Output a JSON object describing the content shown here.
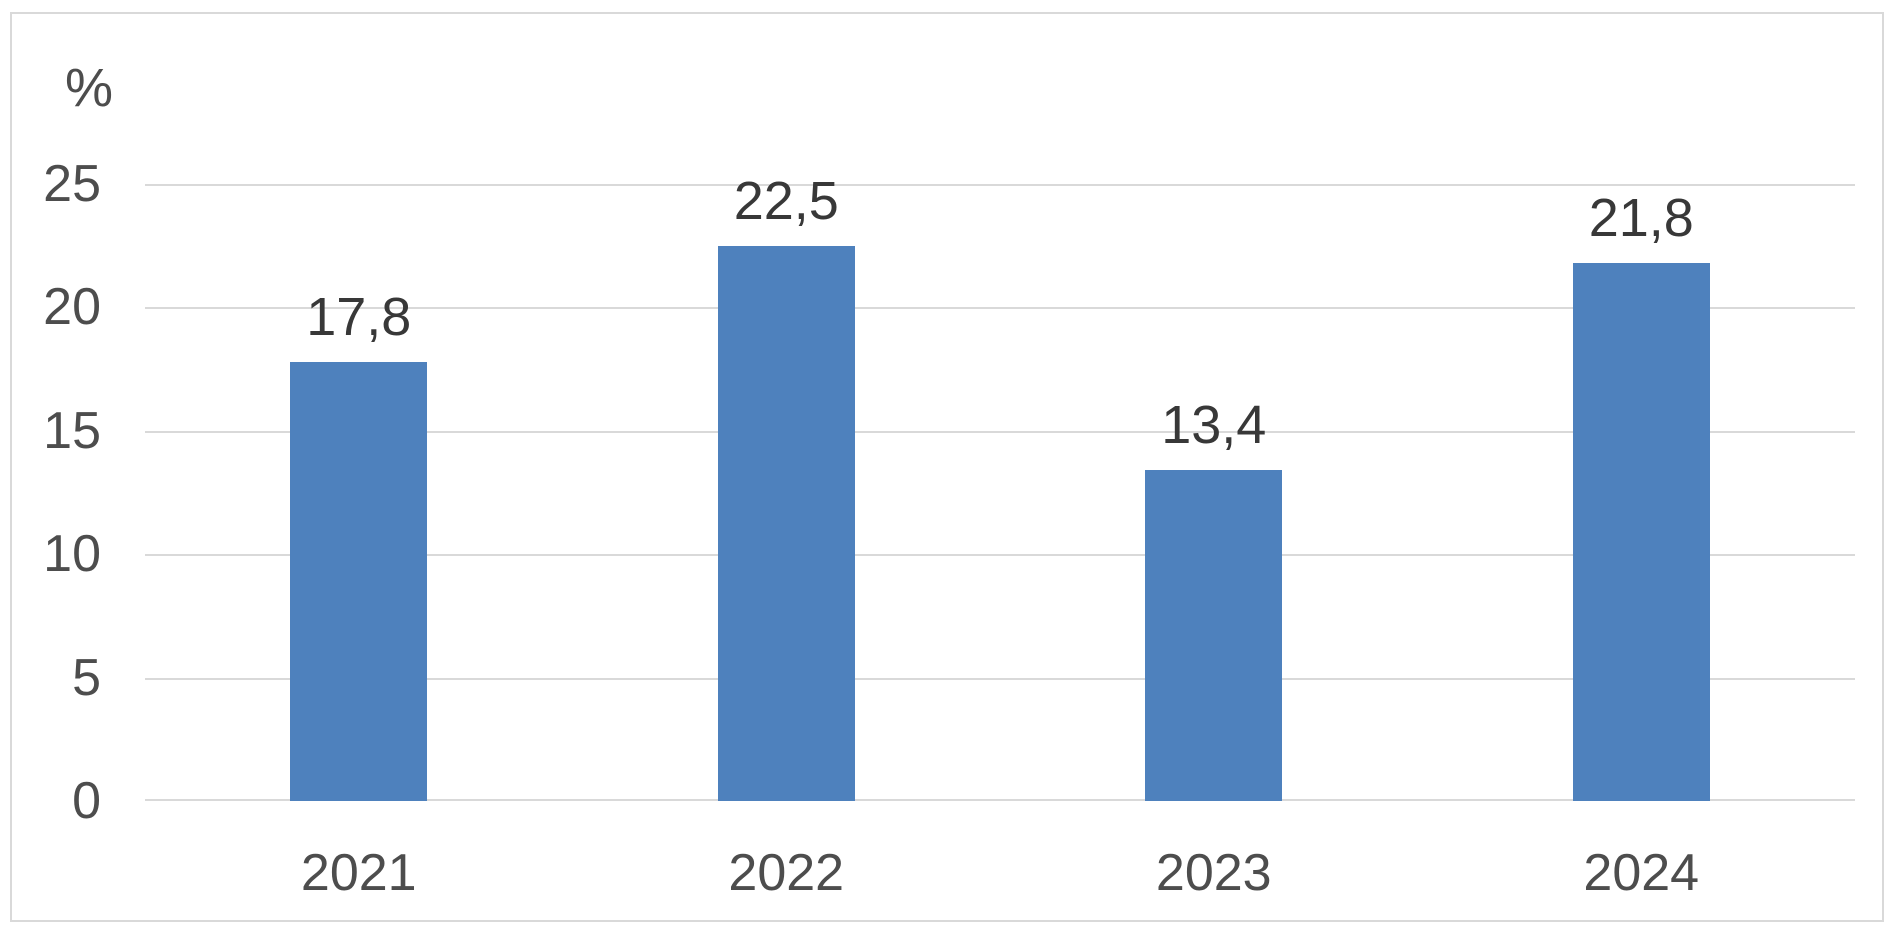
{
  "chart_data": {
    "type": "bar",
    "title": "",
    "xlabel": "",
    "ylabel": "%",
    "categories": [
      "2021",
      "2022",
      "2023",
      "2024"
    ],
    "values": [
      17.8,
      22.5,
      13.4,
      21.8
    ],
    "value_labels": [
      "17,8",
      "22,5",
      "13,4",
      "21,8"
    ],
    "ylim": [
      0,
      25
    ],
    "yticks": [
      0,
      5,
      10,
      15,
      20,
      25
    ],
    "ytick_labels": [
      "0",
      "5",
      "10",
      "15",
      "20",
      "25"
    ],
    "grid": true,
    "legend_position": "none",
    "bar_color": "#4e81bd",
    "gridline_color": "#d9d9d9",
    "frame_border_color": "#d9d9d9",
    "tick_text_color": "#4d4d4d",
    "data_label_text_color": "#383838"
  }
}
